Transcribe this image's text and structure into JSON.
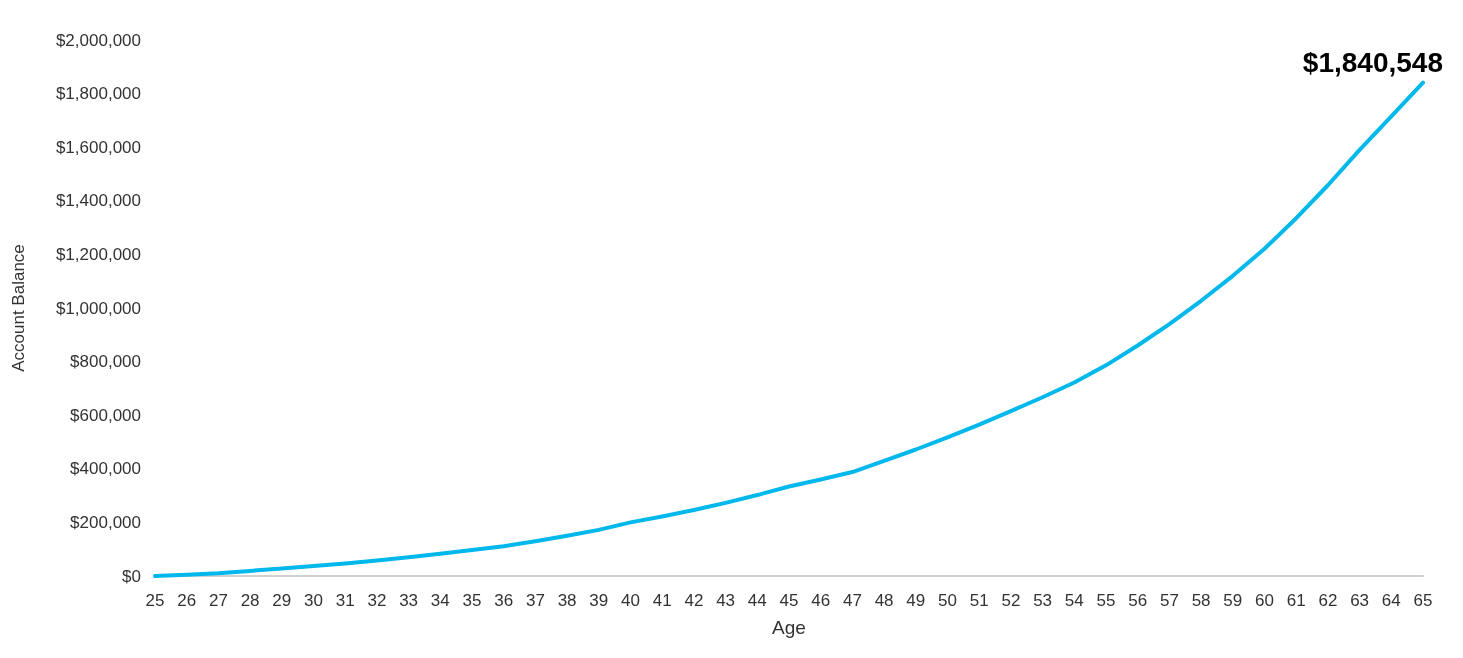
{
  "chart_data": {
    "type": "line",
    "xlabel": "Age",
    "ylabel": "Account Balance",
    "categories": [
      "25",
      "26",
      "27",
      "28",
      "29",
      "30",
      "31",
      "32",
      "33",
      "34",
      "35",
      "36",
      "37",
      "38",
      "39",
      "40",
      "41",
      "42",
      "43",
      "44",
      "45",
      "46",
      "47",
      "48",
      "49",
      "50",
      "51",
      "52",
      "53",
      "54",
      "55",
      "56",
      "57",
      "58",
      "59",
      "60",
      "61",
      "62",
      "63",
      "64",
      "65"
    ],
    "series": [
      {
        "color": "#00b8ec",
        "values": [
          0,
          5000,
          10000,
          19000,
          28000,
          37000,
          47000,
          58000,
          70000,
          83000,
          97000,
          111000,
          130000,
          150000,
          172000,
          200000,
          222000,
          246000,
          273000,
          302000,
          334000,
          360000,
          388000,
          430000,
          472000,
          517000,
          565000,
          615000,
          667000,
          722000,
          786000,
          860000,
          940000,
          1027000,
          1120000,
          1221000,
          1335000,
          1458000,
          1590000,
          1715000,
          1840548
        ],
        "value_labels": [
          null,
          null,
          null,
          null,
          null,
          null,
          null,
          null,
          null,
          null,
          null,
          null,
          null,
          null,
          null,
          null,
          null,
          null,
          null,
          null,
          null,
          null,
          null,
          null,
          null,
          null,
          null,
          null,
          null,
          null,
          null,
          null,
          null,
          null,
          null,
          null,
          null,
          null,
          null,
          null,
          "$1,840,548"
        ]
      }
    ],
    "ylim": [
      0,
      2000000
    ],
    "yticks": [
      {
        "value": 0,
        "label": "$0"
      },
      {
        "value": 200000,
        "label": "$200,000"
      },
      {
        "value": 400000,
        "label": "$400,000"
      },
      {
        "value": 600000,
        "label": "$600,000"
      },
      {
        "value": 800000,
        "label": "$800,000"
      },
      {
        "value": 1000000,
        "label": "$1,000,000"
      },
      {
        "value": 1200000,
        "label": "$1,200,000"
      },
      {
        "value": 1400000,
        "label": "$1,400,000"
      },
      {
        "value": 1600000,
        "label": "$1,600,000"
      },
      {
        "value": 1800000,
        "label": "$1,800,000"
      },
      {
        "value": 2000000,
        "label": "$2,000,000"
      }
    ],
    "grid": false,
    "marker": "none",
    "line_style": "solid"
  }
}
